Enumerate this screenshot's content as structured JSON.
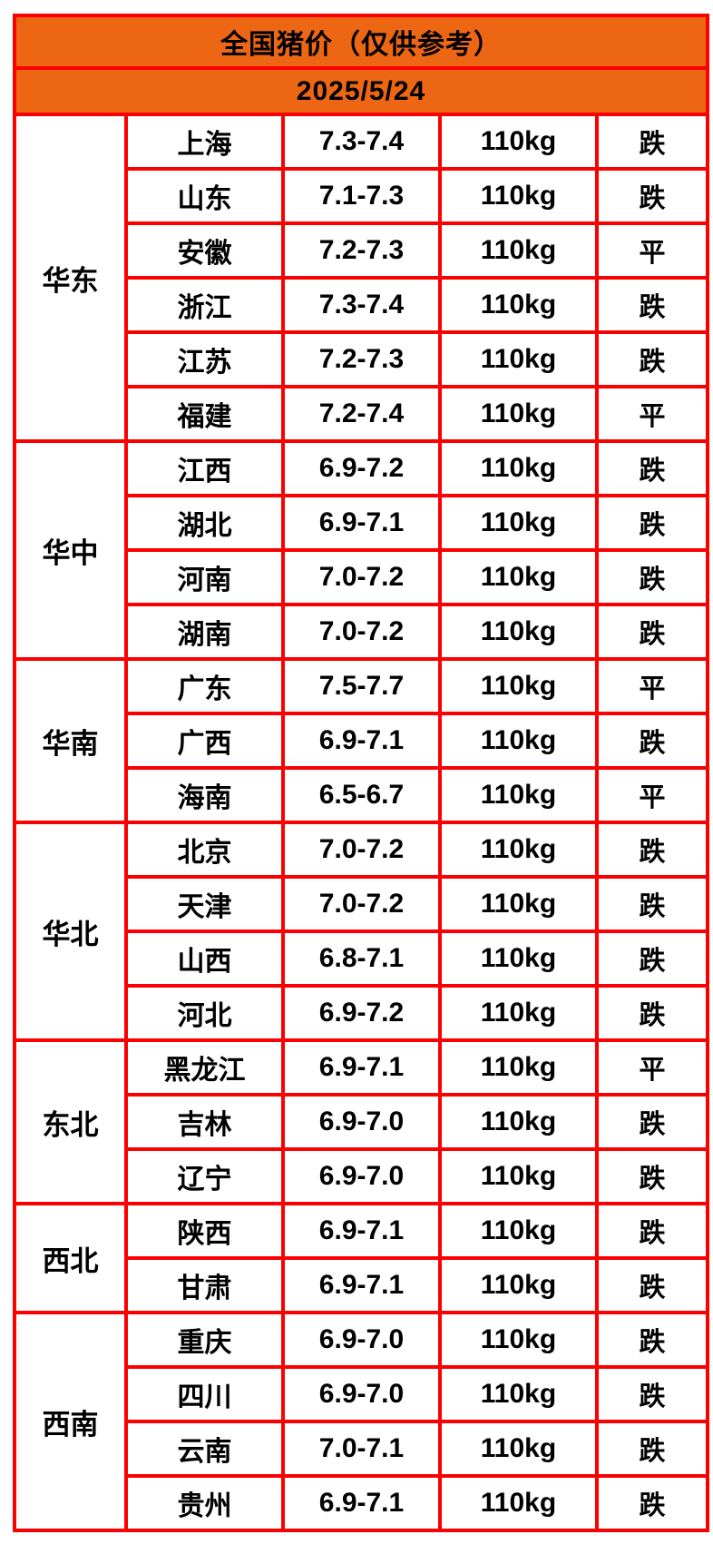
{
  "header": {
    "title": "全国猪价（仅供参考）",
    "date": "2025/5/24"
  },
  "colors": {
    "header_orange": "#ED6613",
    "grid_red": "#FB0000",
    "status_fall_green": "#22CC22",
    "text_black": "#000000"
  },
  "table": {
    "status_fall_label": "跌",
    "status_flat_label": "平",
    "columns": [
      "region",
      "province",
      "price",
      "weight",
      "status"
    ],
    "regions": [
      {
        "name": "华东",
        "rows": [
          {
            "province": "上海",
            "price": "7.3-7.4",
            "weight": "110kg",
            "status": "跌"
          },
          {
            "province": "山东",
            "price": "7.1-7.3",
            "weight": "110kg",
            "status": "跌"
          },
          {
            "province": "安徽",
            "price": "7.2-7.3",
            "weight": "110kg",
            "status": "平"
          },
          {
            "province": "浙江",
            "price": "7.3-7.4",
            "weight": "110kg",
            "status": "跌"
          },
          {
            "province": "江苏",
            "price": "7.2-7.3",
            "weight": "110kg",
            "status": "跌"
          },
          {
            "province": "福建",
            "price": "7.2-7.4",
            "weight": "110kg",
            "status": "平"
          }
        ]
      },
      {
        "name": "华中",
        "rows": [
          {
            "province": "江西",
            "price": "6.9-7.2",
            "weight": "110kg",
            "status": "跌"
          },
          {
            "province": "湖北",
            "price": "6.9-7.1",
            "weight": "110kg",
            "status": "跌"
          },
          {
            "province": "河南",
            "price": "7.0-7.2",
            "weight": "110kg",
            "status": "跌"
          },
          {
            "province": "湖南",
            "price": "7.0-7.2",
            "weight": "110kg",
            "status": "跌"
          }
        ]
      },
      {
        "name": "华南",
        "rows": [
          {
            "province": "广东",
            "price": "7.5-7.7",
            "weight": "110kg",
            "status": "平"
          },
          {
            "province": "广西",
            "price": "6.9-7.1",
            "weight": "110kg",
            "status": "跌"
          },
          {
            "province": "海南",
            "price": "6.5-6.7",
            "weight": "110kg",
            "status": "平"
          }
        ]
      },
      {
        "name": "华北",
        "rows": [
          {
            "province": "北京",
            "price": "7.0-7.2",
            "weight": "110kg",
            "status": "跌"
          },
          {
            "province": "天津",
            "price": "7.0-7.2",
            "weight": "110kg",
            "status": "跌"
          },
          {
            "province": "山西",
            "price": "6.8-7.1",
            "weight": "110kg",
            "status": "跌"
          },
          {
            "province": "河北",
            "price": "6.9-7.2",
            "weight": "110kg",
            "status": "跌"
          }
        ]
      },
      {
        "name": "东北",
        "rows": [
          {
            "province": "黑龙江",
            "price": "6.9-7.1",
            "weight": "110kg",
            "status": "平"
          },
          {
            "province": "吉林",
            "price": "6.9-7.0",
            "weight": "110kg",
            "status": "跌"
          },
          {
            "province": "辽宁",
            "price": "6.9-7.0",
            "weight": "110kg",
            "status": "跌"
          }
        ]
      },
      {
        "name": "西北",
        "rows": [
          {
            "province": "陕西",
            "price": "6.9-7.1",
            "weight": "110kg",
            "status": "跌"
          },
          {
            "province": "甘肃",
            "price": "6.9-7.1",
            "weight": "110kg",
            "status": "跌"
          }
        ]
      },
      {
        "name": "西南",
        "rows": [
          {
            "province": "重庆",
            "price": "6.9-7.0",
            "weight": "110kg",
            "status": "跌"
          },
          {
            "province": "四川",
            "price": "6.9-7.0",
            "weight": "110kg",
            "status": "跌"
          },
          {
            "province": "云南",
            "price": "7.0-7.1",
            "weight": "110kg",
            "status": "跌"
          },
          {
            "province": "贵州",
            "price": "6.9-7.1",
            "weight": "110kg",
            "status": "跌"
          }
        ]
      }
    ]
  }
}
